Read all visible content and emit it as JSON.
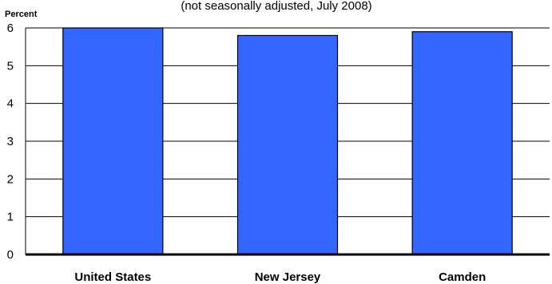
{
  "chart_data": {
    "type": "bar",
    "subtitle": "(not seasonally adjusted, July 2008)",
    "ylabel": "Percent",
    "categories": [
      "United States",
      "New Jersey",
      "Camden"
    ],
    "values": [
      6.0,
      5.8,
      5.9
    ],
    "ylim": [
      0,
      6
    ],
    "yticks": [
      "0",
      "1",
      "2",
      "3",
      "4",
      "5",
      "6"
    ],
    "grid": true,
    "legend": "none",
    "bar_color": "#3366ff",
    "bar_edge_color": "#000000"
  }
}
